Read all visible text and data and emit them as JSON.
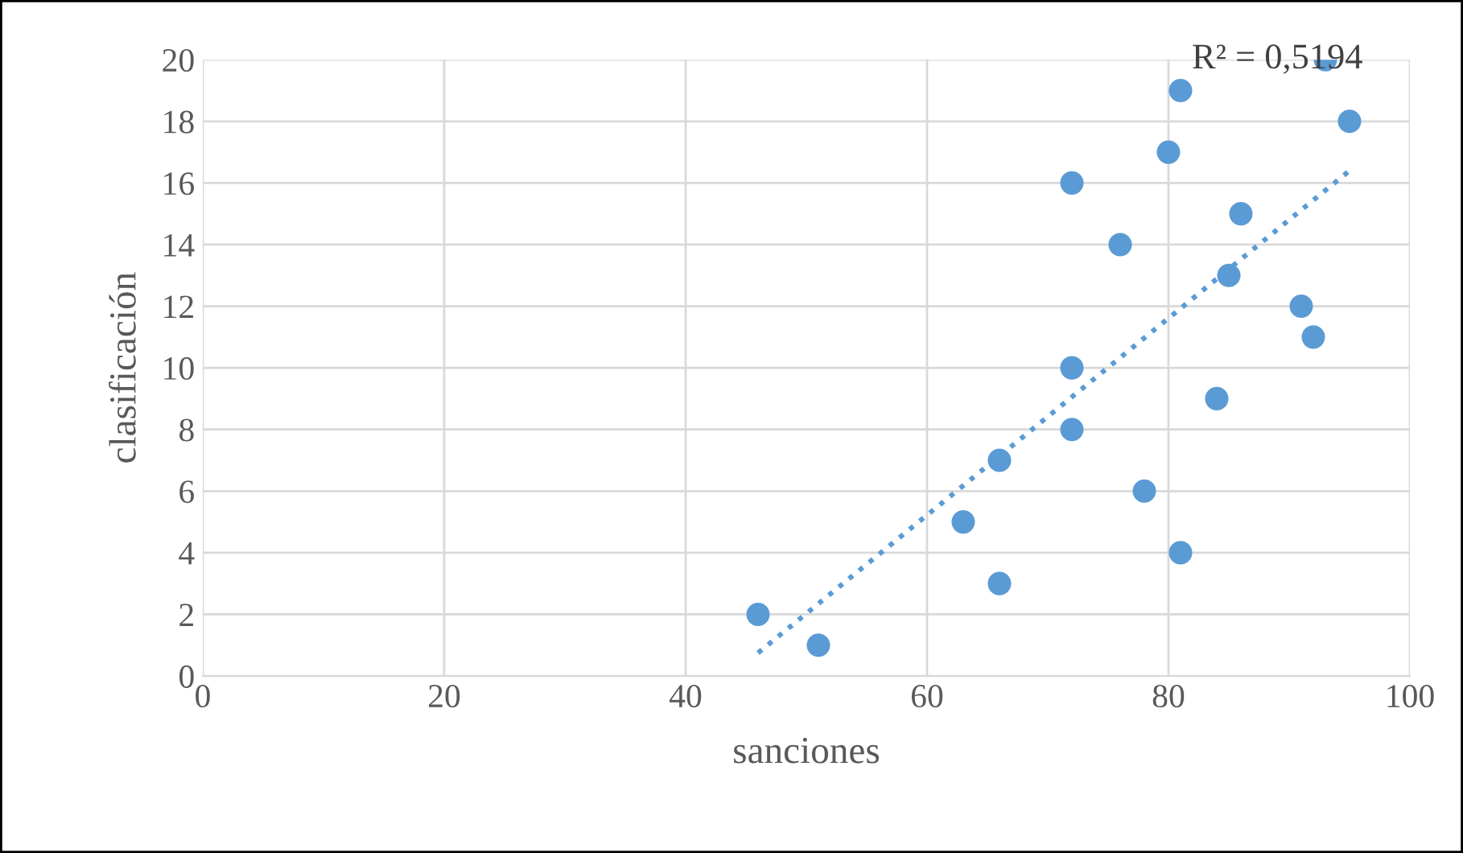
{
  "chart_data": {
    "type": "scatter",
    "xlabel": "sanciones",
    "ylabel": "clasificación",
    "xlim": [
      0,
      100
    ],
    "xticks": [
      0,
      20,
      40,
      60,
      80,
      100
    ],
    "ylim": [
      0,
      20
    ],
    "yticks": [
      0,
      2,
      4,
      6,
      8,
      10,
      12,
      14,
      16,
      18,
      20
    ],
    "grid": true,
    "annotations": [
      "R² = 0,5194"
    ],
    "series": [
      {
        "color": "#5b9bd5",
        "marker": "circle",
        "x": [
          46,
          51,
          63,
          66,
          66,
          72,
          72,
          72,
          76,
          78,
          80,
          81,
          81,
          84,
          85,
          86,
          91,
          92,
          93,
          95
        ],
        "values": [
          2,
          1,
          5,
          3,
          7,
          16,
          10,
          8,
          14,
          6,
          17,
          19,
          4,
          9,
          13,
          15,
          12,
          11,
          20,
          18
        ]
      },
      {
        "type": "line",
        "color": "#5b9bd5",
        "line_style": "dotted",
        "x": [
          46,
          95
        ],
        "values": [
          0.75,
          16.4
        ]
      }
    ]
  }
}
